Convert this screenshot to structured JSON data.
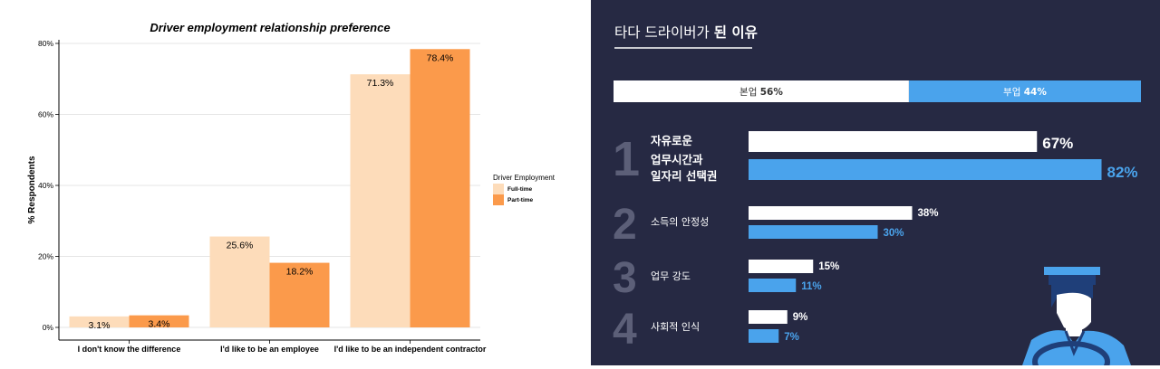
{
  "chart_data": [
    {
      "type": "bar",
      "title": "Driver employment relationship preference",
      "xlabel": "",
      "ylabel": "% Respondents",
      "ylim": [
        0,
        0.8
      ],
      "yticks": [
        "0%",
        "20%",
        "40%",
        "60%",
        "80%"
      ],
      "categories": [
        "I don't know the difference",
        "I'd like to be an employee",
        "I'd like to be an independent contractor"
      ],
      "legend_title": "Driver Employment",
      "legend_position": "right",
      "series": [
        {
          "name": "Full-time",
          "color": "#fddcba",
          "values": [
            0.031,
            0.256,
            0.713
          ],
          "labels": [
            "3.1%",
            "25.6%",
            "71.3%"
          ]
        },
        {
          "name": "Part-time",
          "color": "#fb9a4b",
          "values": [
            0.034,
            0.182,
            0.784
          ],
          "labels": [
            "3.4%",
            "18.2%",
            "78.4%"
          ]
        }
      ]
    },
    {
      "type": "bar",
      "title_plain": "타다 드라이버가",
      "title_bold": "된 이유",
      "split": {
        "main": {
          "label": "본업",
          "value_label": "56%",
          "value": 56,
          "color": "#ffffff"
        },
        "side": {
          "label": "부업",
          "value_label": "44%",
          "value": 44,
          "color": "#4aa3ec"
        }
      },
      "reasons": [
        {
          "rank": "1",
          "label_lines": [
            "자유로운",
            "업무시간과",
            "일자리 선택권"
          ],
          "main": 67,
          "main_label": "67%",
          "side": 82,
          "side_label": "82%"
        },
        {
          "rank": "2",
          "label_lines": [
            "소득의 안정성"
          ],
          "main": 38,
          "main_label": "38%",
          "side": 30,
          "side_label": "30%"
        },
        {
          "rank": "3",
          "label_lines": [
            "업무 강도"
          ],
          "main": 15,
          "main_label": "15%",
          "side": 11,
          "side_label": "11%"
        },
        {
          "rank": "4",
          "label_lines": [
            "사회적 인식"
          ],
          "main": 9,
          "main_label": "9%",
          "side": 7,
          "side_label": "7%"
        }
      ],
      "colors": {
        "background": "#262943",
        "main_bar": "#ffffff",
        "side_bar": "#4aa3ec"
      }
    }
  ]
}
